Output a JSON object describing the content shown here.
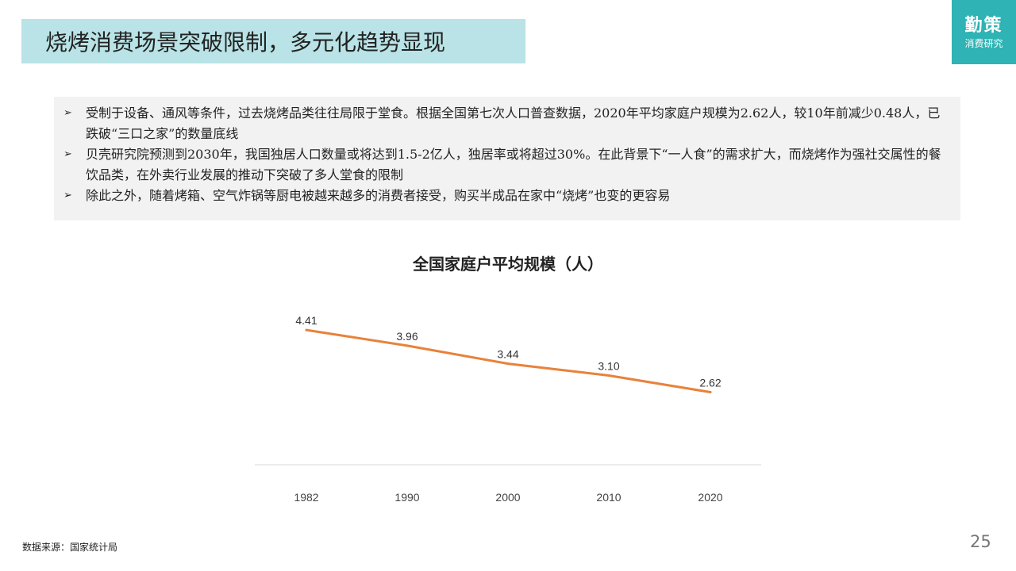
{
  "header": {
    "title": "烧烤消费场景突破限制，多元化趋势显现"
  },
  "logo": {
    "line1": "勤策",
    "line2": "消费研究"
  },
  "bullets": [
    {
      "marker": "➢",
      "text": "受制于设备、通风等条件，过去烧烤品类往往局限于堂食。根据全国第七次人口普查数据，2020年平均家庭户规模为2.62人，较10年前减少0.48人，已跌破“三口之家”的数量底线"
    },
    {
      "marker": "➢",
      "text": "贝壳研究院预测到2030年，我国独居人口数量或将达到1.5-2亿人，独居率或将超过30%。在此背景下“一人食”的需求扩大，而烧烤作为强社交属性的餐饮品类，在外卖行业发展的推动下突破了多人堂食的限制"
    },
    {
      "marker": "➢",
      "text": "除此之外，随着烤箱、空气炸锅等厨电被越来越多的消费者接受，购买半成品在家中“烧烤”也变的更容易"
    }
  ],
  "chart_data": {
    "type": "line",
    "title": "全国家庭户平均规模（人）",
    "categories": [
      "1982",
      "1990",
      "2000",
      "2010",
      "2020"
    ],
    "values": [
      4.41,
      3.96,
      3.44,
      3.1,
      2.62
    ],
    "data_labels": [
      "4.41",
      "3.96",
      "3.44",
      "3.10",
      "2.62"
    ],
    "line_color": "#e8823a",
    "ylim": [
      0,
      5
    ],
    "grid": false
  },
  "footer": {
    "source": "数据来源：国家统计局",
    "page": "25"
  }
}
